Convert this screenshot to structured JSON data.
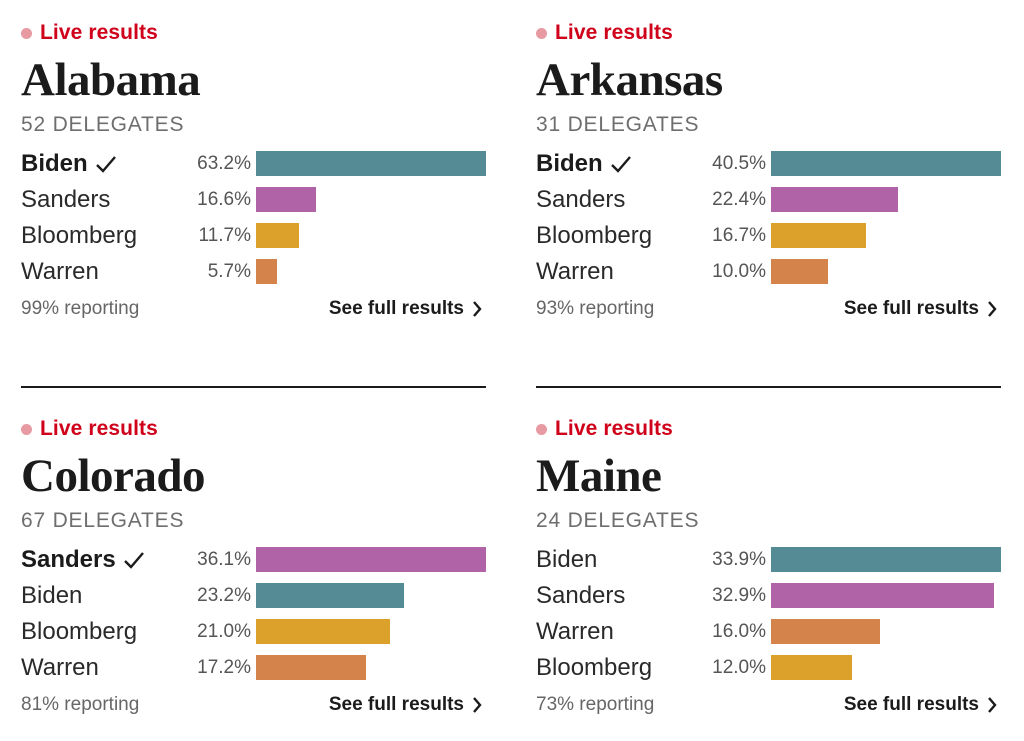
{
  "colors": {
    "live": "#d0021b",
    "live_dot": "#e89aa2",
    "Biden": "#548b94",
    "Sanders": "#b163a7",
    "Bloomberg": "#dba12b",
    "Warren": "#d4834a"
  },
  "icons": {
    "winner": "checkmark-icon",
    "link": "chevron-right-icon",
    "live": "live-dot-icon"
  },
  "chart_data": [
    {
      "type": "bar",
      "live_label": "Live results",
      "title": "Alabama",
      "subtitle": "52 DELEGATES",
      "rows": [
        {
          "candidate": "Biden",
          "label": "63.2%",
          "value": 63.2,
          "winner": true
        },
        {
          "candidate": "Sanders",
          "label": "16.6%",
          "value": 16.6,
          "winner": false
        },
        {
          "candidate": "Bloomberg",
          "label": "11.7%",
          "value": 11.7,
          "winner": false
        },
        {
          "candidate": "Warren",
          "label": "5.7%",
          "value": 5.7,
          "winner": false
        }
      ],
      "reporting": "99% reporting",
      "link": "See full results"
    },
    {
      "type": "bar",
      "live_label": "Live results",
      "title": "Arkansas",
      "subtitle": "31 DELEGATES",
      "rows": [
        {
          "candidate": "Biden",
          "label": "40.5%",
          "value": 40.5,
          "winner": true
        },
        {
          "candidate": "Sanders",
          "label": "22.4%",
          "value": 22.4,
          "winner": false
        },
        {
          "candidate": "Bloomberg",
          "label": "16.7%",
          "value": 16.7,
          "winner": false
        },
        {
          "candidate": "Warren",
          "label": "10.0%",
          "value": 10.0,
          "winner": false
        }
      ],
      "reporting": "93% reporting",
      "link": "See full results"
    },
    {
      "type": "bar",
      "live_label": "Live results",
      "title": "Colorado",
      "subtitle": "67 DELEGATES",
      "rows": [
        {
          "candidate": "Sanders",
          "label": "36.1%",
          "value": 36.1,
          "winner": true
        },
        {
          "candidate": "Biden",
          "label": "23.2%",
          "value": 23.2,
          "winner": false
        },
        {
          "candidate": "Bloomberg",
          "label": "21.0%",
          "value": 21.0,
          "winner": false
        },
        {
          "candidate": "Warren",
          "label": "17.2%",
          "value": 17.2,
          "winner": false
        }
      ],
      "reporting": "81% reporting",
      "link": "See full results"
    },
    {
      "type": "bar",
      "live_label": "Live results",
      "title": "Maine",
      "subtitle": "24 DELEGATES",
      "rows": [
        {
          "candidate": "Biden",
          "label": "33.9%",
          "value": 33.9,
          "winner": false
        },
        {
          "candidate": "Sanders",
          "label": "32.9%",
          "value": 32.9,
          "winner": false
        },
        {
          "candidate": "Warren",
          "label": "16.0%",
          "value": 16.0,
          "winner": false
        },
        {
          "candidate": "Bloomberg",
          "label": "12.0%",
          "value": 12.0,
          "winner": false
        }
      ],
      "reporting": "73% reporting",
      "link": "See full results"
    }
  ]
}
